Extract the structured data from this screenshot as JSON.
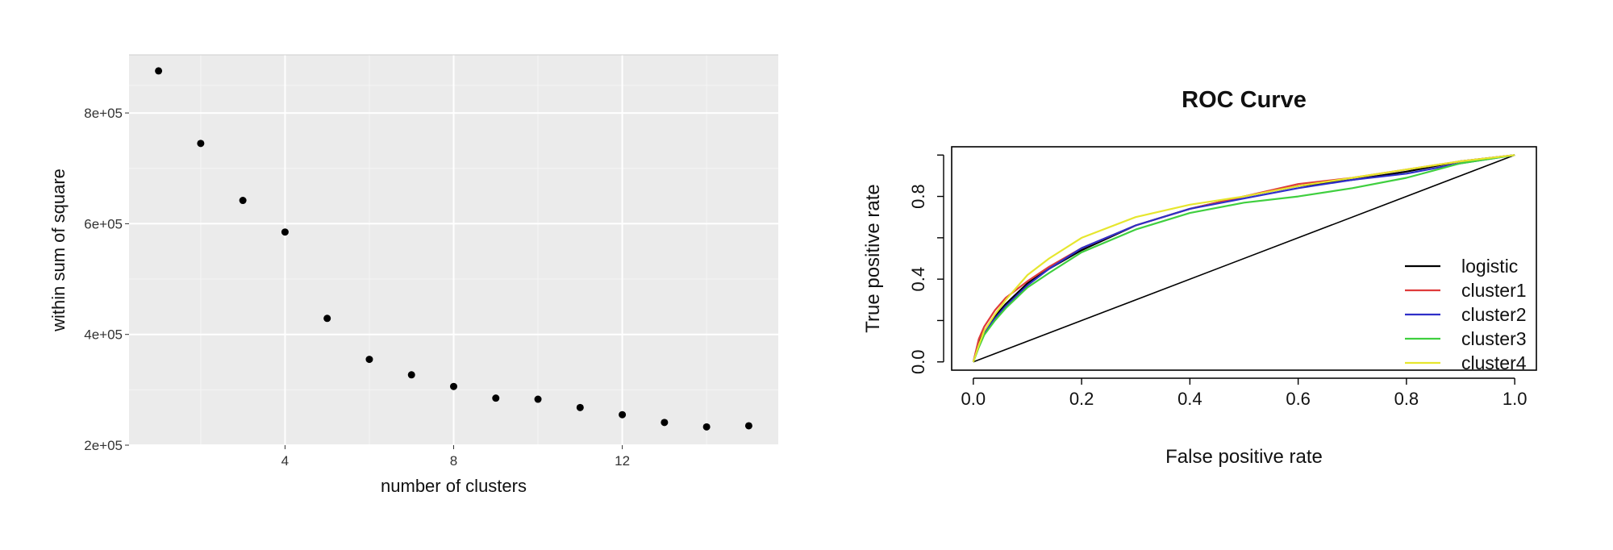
{
  "chart_data": [
    {
      "type": "scatter",
      "title": "",
      "xlabel": "number of clusters",
      "ylabel": "within sum of square",
      "xlim": [
        0.3,
        15.7
      ],
      "ylim": [
        200000,
        905000
      ],
      "x_ticks": [
        {
          "value": 4,
          "label": "4"
        },
        {
          "value": 8,
          "label": "8"
        },
        {
          "value": 12,
          "label": "12"
        }
      ],
      "y_ticks": [
        {
          "value": 200000,
          "label": "2e+05"
        },
        {
          "value": 400000,
          "label": "4e+05"
        },
        {
          "value": 600000,
          "label": "6e+05"
        },
        {
          "value": 800000,
          "label": "8e+05"
        }
      ],
      "grid": true,
      "background": "#ebebeb",
      "point_color": "#000000",
      "points": [
        {
          "x": 1,
          "y": 876000
        },
        {
          "x": 2,
          "y": 745000
        },
        {
          "x": 3,
          "y": 642000
        },
        {
          "x": 4,
          "y": 585000
        },
        {
          "x": 5,
          "y": 429000
        },
        {
          "x": 6,
          "y": 355000
        },
        {
          "x": 7,
          "y": 327000
        },
        {
          "x": 8,
          "y": 306000
        },
        {
          "x": 9,
          "y": 285000
        },
        {
          "x": 10,
          "y": 283000
        },
        {
          "x": 11,
          "y": 268000
        },
        {
          "x": 12,
          "y": 255000
        },
        {
          "x": 13,
          "y": 241000
        },
        {
          "x": 14,
          "y": 233000
        },
        {
          "x": 15,
          "y": 235000
        }
      ]
    },
    {
      "type": "line",
      "title": "ROC Curve",
      "xlabel": "False positive rate",
      "ylabel": "True positive rate",
      "xlim": [
        -0.04,
        1.04
      ],
      "ylim": [
        -0.04,
        1.04
      ],
      "x_ticks": [
        {
          "value": 0.0,
          "label": "0.0"
        },
        {
          "value": 0.2,
          "label": "0.2"
        },
        {
          "value": 0.4,
          "label": "0.4"
        },
        {
          "value": 0.6,
          "label": "0.6"
        },
        {
          "value": 0.8,
          "label": "0.8"
        },
        {
          "value": 1.0,
          "label": "1.0"
        }
      ],
      "y_ticks": [
        {
          "value": 0.0,
          "label": "0.0"
        },
        {
          "value": 0.4,
          "label": "0.4"
        },
        {
          "value": 0.8,
          "label": "0.8"
        }
      ],
      "grid": false,
      "legend_position": "bottom-right",
      "reference_line": {
        "x": [
          0,
          1
        ],
        "y": [
          0,
          1
        ],
        "color": "#000000"
      },
      "series": [
        {
          "name": "logistic",
          "color": "#000000",
          "x": [
            0,
            0.01,
            0.02,
            0.04,
            0.06,
            0.08,
            0.1,
            0.14,
            0.2,
            0.3,
            0.4,
            0.5,
            0.6,
            0.7,
            0.8,
            0.9,
            1.0
          ],
          "y": [
            0,
            0.09,
            0.15,
            0.22,
            0.28,
            0.33,
            0.38,
            0.45,
            0.54,
            0.66,
            0.74,
            0.8,
            0.85,
            0.88,
            0.92,
            0.97,
            1.0
          ]
        },
        {
          "name": "cluster1",
          "color": "#df3b3b",
          "x": [
            0,
            0.01,
            0.02,
            0.04,
            0.06,
            0.08,
            0.1,
            0.14,
            0.2,
            0.3,
            0.4,
            0.5,
            0.6,
            0.7,
            0.8,
            0.9,
            1.0
          ],
          "y": [
            0,
            0.11,
            0.17,
            0.25,
            0.31,
            0.35,
            0.39,
            0.46,
            0.55,
            0.66,
            0.74,
            0.8,
            0.86,
            0.89,
            0.93,
            0.97,
            1.0
          ]
        },
        {
          "name": "cluster2",
          "color": "#2f2fc8",
          "x": [
            0,
            0.01,
            0.02,
            0.04,
            0.06,
            0.08,
            0.1,
            0.14,
            0.2,
            0.3,
            0.4,
            0.5,
            0.6,
            0.7,
            0.8,
            0.9,
            1.0
          ],
          "y": [
            0,
            0.08,
            0.14,
            0.21,
            0.27,
            0.32,
            0.37,
            0.45,
            0.55,
            0.66,
            0.74,
            0.79,
            0.84,
            0.88,
            0.91,
            0.96,
            1.0
          ]
        },
        {
          "name": "cluster3",
          "color": "#3fcf3f",
          "x": [
            0,
            0.01,
            0.02,
            0.04,
            0.06,
            0.08,
            0.1,
            0.14,
            0.2,
            0.3,
            0.4,
            0.5,
            0.6,
            0.7,
            0.8,
            0.9,
            1.0
          ],
          "y": [
            0,
            0.07,
            0.13,
            0.2,
            0.26,
            0.31,
            0.36,
            0.43,
            0.53,
            0.64,
            0.72,
            0.77,
            0.8,
            0.84,
            0.89,
            0.96,
            1.0
          ]
        },
        {
          "name": "cluster4",
          "color": "#e6e62e",
          "x": [
            0,
            0.01,
            0.02,
            0.04,
            0.06,
            0.08,
            0.1,
            0.14,
            0.2,
            0.3,
            0.4,
            0.5,
            0.6,
            0.7,
            0.8,
            0.9,
            1.0
          ],
          "y": [
            0,
            0.08,
            0.15,
            0.23,
            0.3,
            0.36,
            0.42,
            0.5,
            0.6,
            0.7,
            0.76,
            0.8,
            0.85,
            0.89,
            0.93,
            0.97,
            1.0
          ]
        }
      ]
    }
  ]
}
